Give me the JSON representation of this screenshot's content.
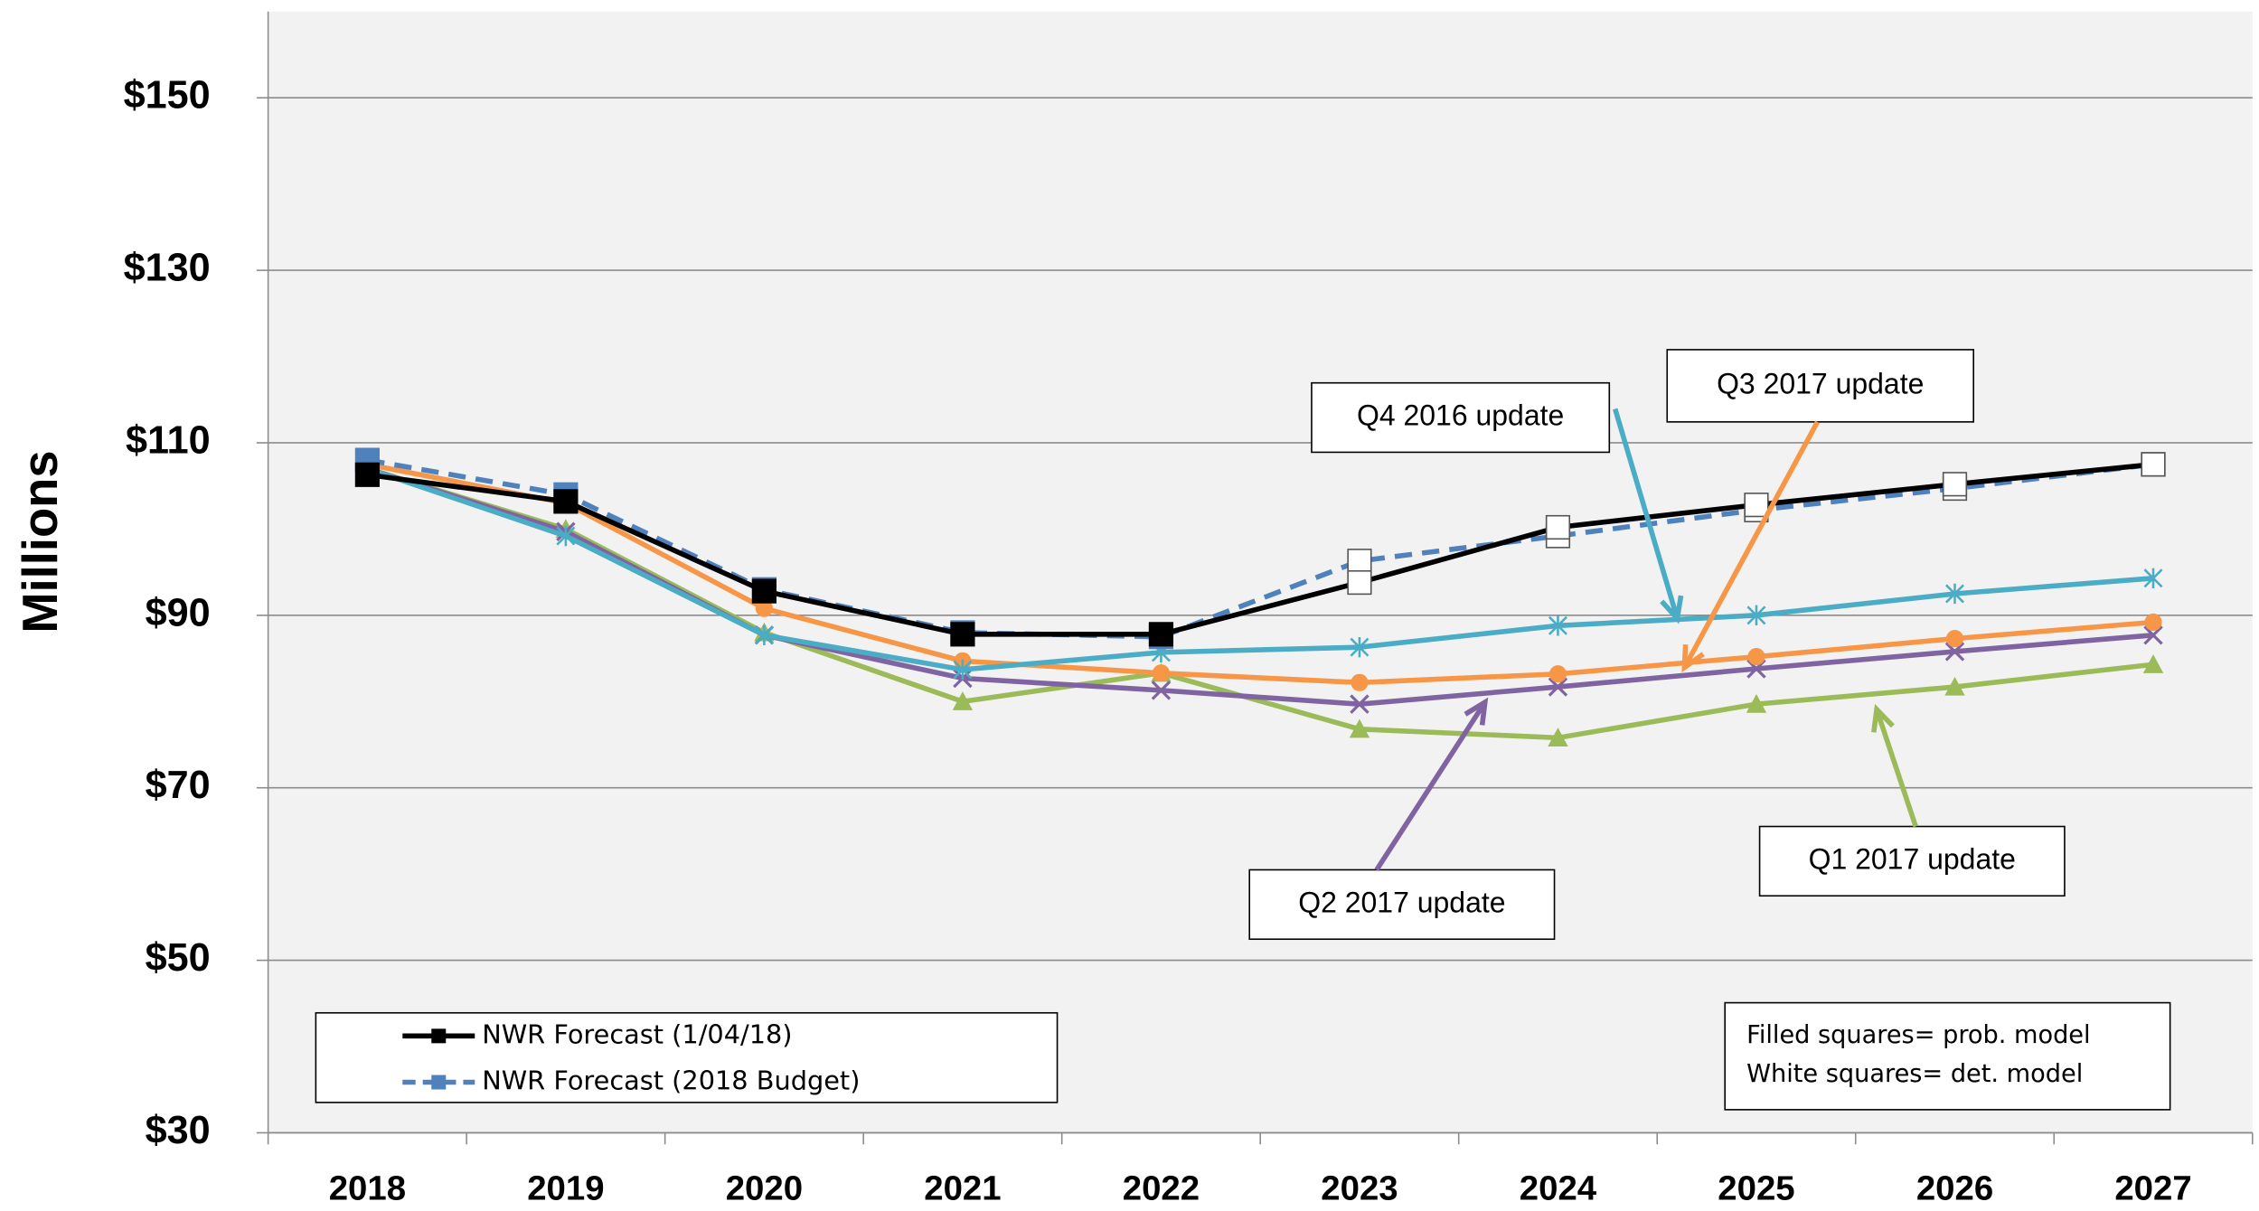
{
  "chart_data": {
    "type": "line",
    "ylabel": "Millions",
    "categories": [
      "2018",
      "2019",
      "2020",
      "2021",
      "2022",
      "2023",
      "2024",
      "2025",
      "2026",
      "2027"
    ],
    "ylim": [
      30,
      160
    ],
    "yticks": [
      {
        "value": 30,
        "label": "$30"
      },
      {
        "value": 50,
        "label": "$50"
      },
      {
        "value": 70,
        "label": "$70"
      },
      {
        "value": 90,
        "label": "$90"
      },
      {
        "value": 110,
        "label": "$110"
      },
      {
        "value": 130,
        "label": "$130"
      },
      {
        "value": 150,
        "label": "$150"
      }
    ],
    "grid": true,
    "legend": "lower left",
    "hollow_markers_from": "2023",
    "series": [
      {
        "name": "NWR Forecast (1/04/18)",
        "color": "#000000",
        "marker": "square",
        "dash": false,
        "in_legend": true,
        "values": [
          106.3,
          103.2,
          92.8,
          87.8,
          87.8,
          93.8,
          100.2,
          102.8,
          105.2,
          107.5
        ]
      },
      {
        "name": "NWR Forecast (2018 Budget)",
        "color": "#4f81bd",
        "marker": "square",
        "dash": true,
        "in_legend": true,
        "values": [
          108,
          104,
          93,
          88,
          87.5,
          96.3,
          99.2,
          102.2,
          104.7,
          107.5
        ]
      },
      {
        "name": "Q4 2016 update",
        "color": "#4bacc6",
        "marker": "asterisk",
        "dash": false,
        "in_legend": false,
        "values": [
          107,
          99.2,
          87.7,
          83.7,
          85.7,
          86.3,
          88.8,
          90,
          92.5,
          94.3
        ]
      },
      {
        "name": "Q3 2017 update",
        "color": "#f79646",
        "marker": "circle",
        "dash": false,
        "in_legend": false,
        "values": [
          107.5,
          103,
          90.8,
          84.7,
          83.3,
          82.2,
          83.2,
          85.2,
          87.3,
          89.2
        ]
      },
      {
        "name": "Q2 2017 update",
        "color": "#8064a2",
        "marker": "x",
        "dash": false,
        "in_legend": false,
        "values": [
          107,
          99.7,
          87.7,
          82.7,
          81.3,
          79.7,
          81.7,
          83.8,
          85.8,
          87.7
        ]
      },
      {
        "name": "Q1 2017 update",
        "color": "#9bbb59",
        "marker": "triangle",
        "dash": false,
        "in_legend": false,
        "values": [
          107,
          100,
          88,
          80,
          83.3,
          76.8,
          75.8,
          79.7,
          81.7,
          84.3
        ]
      }
    ],
    "annotations": [
      "Filled squares= prob. model",
      "White squares= det. model"
    ]
  }
}
